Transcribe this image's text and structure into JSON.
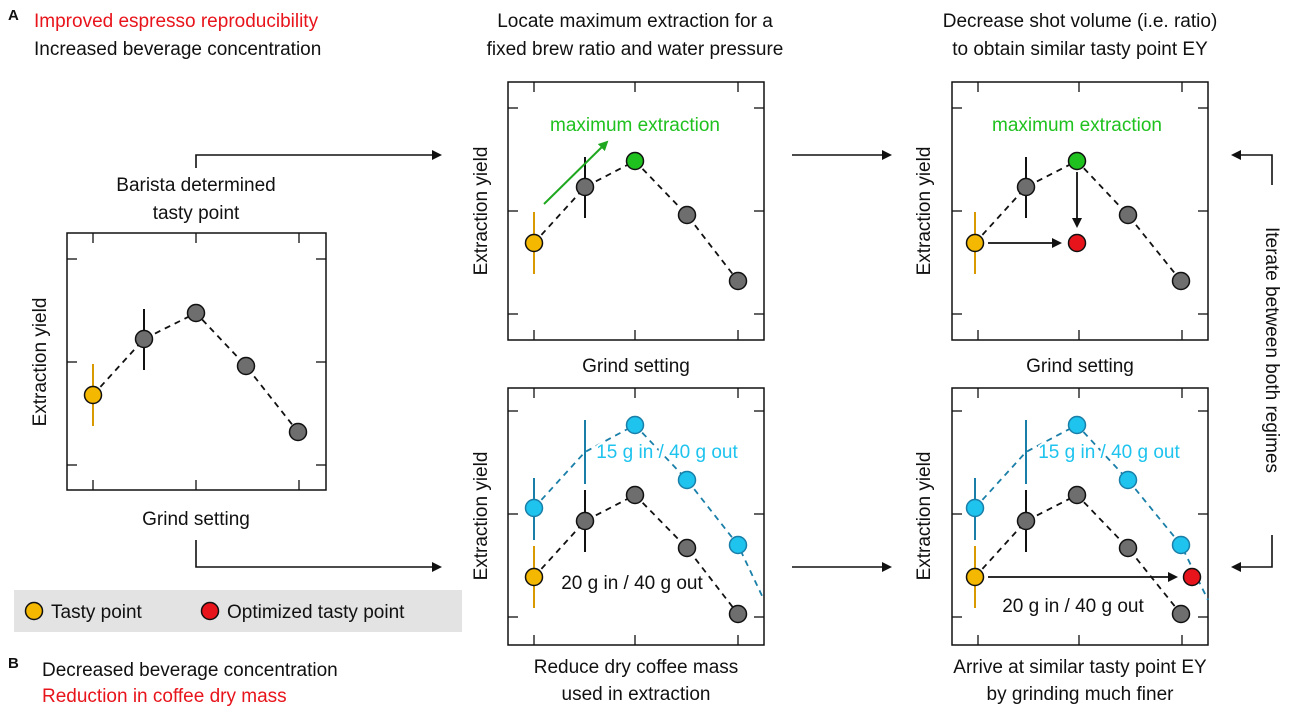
{
  "labels": {
    "panel_a": "A",
    "panel_b": "B",
    "a_line1": "Improved espresso reproducibility",
    "a_line2": "Increased beverage concentration",
    "b_line1": "Decreased beverage concentration",
    "b_line2": "Reduction in coffee dry mass",
    "step1_line1": "Locate maximum extraction for a",
    "step1_line2": "fixed brew ratio and water pressure",
    "step2_line1": "Decrease shot volume (i.e. ratio)",
    "step2_line2": "to obtain similar tasty point EY",
    "barista_line1": "Barista determined",
    "barista_line2": "tasty point",
    "reduce_line1": "Reduce dry coffee mass",
    "reduce_line2": "used in extraction",
    "arrive_line1": "Arrive at similar tasty point EY",
    "arrive_line2": "by grinding much finer",
    "iterate": "Iterate between both regimes",
    "ylabel": "Extraction yield",
    "xlabel": "Grind setting",
    "max_extraction": "maximum extraction",
    "ratio_15": "15 g in / 40 g out",
    "ratio_20": "20 g in / 40 g out"
  },
  "legend": {
    "tasty": "Tasty point",
    "optimized": "Optimized tasty point"
  },
  "colors": {
    "tasty": "#f5b800",
    "optimized": "#e8141b",
    "max": "#1fc11f",
    "cyan": "#1ec3ee",
    "gray": "#6e6e6e",
    "red_text": "#e8141b",
    "green_text": "#1fc11f"
  }
}
